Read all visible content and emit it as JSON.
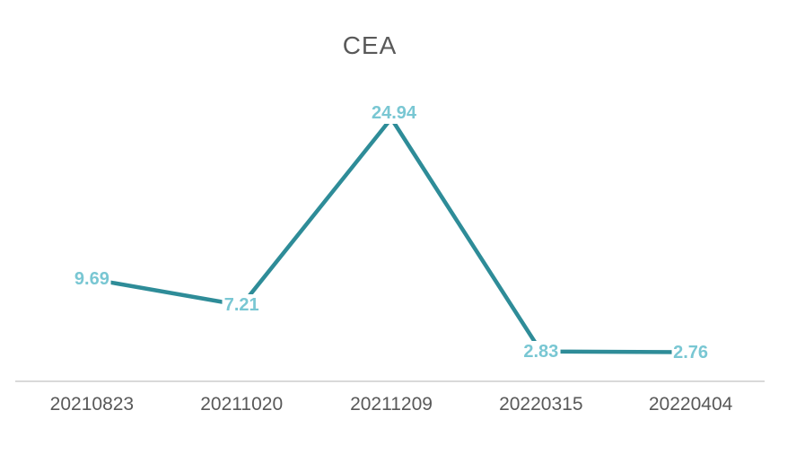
{
  "chart_data": {
    "type": "line",
    "title": "CEA",
    "categories": [
      "20210823",
      "20211020",
      "20211209",
      "20220315",
      "20220404"
    ],
    "series": [
      {
        "name": "CEA",
        "values": [
          9.69,
          7.21,
          24.94,
          2.83,
          2.76
        ],
        "data_labels": [
          "9.69",
          "7.21",
          "24.94",
          "2.83",
          "2.76"
        ],
        "label_positions": [
          "center",
          "center",
          "above",
          "center",
          "center"
        ]
      }
    ],
    "xlabel": "",
    "ylabel": "",
    "ylim": [
      0,
      25
    ],
    "grid": false,
    "legend": "none",
    "colors": {
      "line": "#2E8C98",
      "data_label": "#79C7D3",
      "title": "#595959",
      "tick_label": "#595959",
      "axis_line": "#D9D9D9",
      "background": "#FFFFFF"
    }
  }
}
